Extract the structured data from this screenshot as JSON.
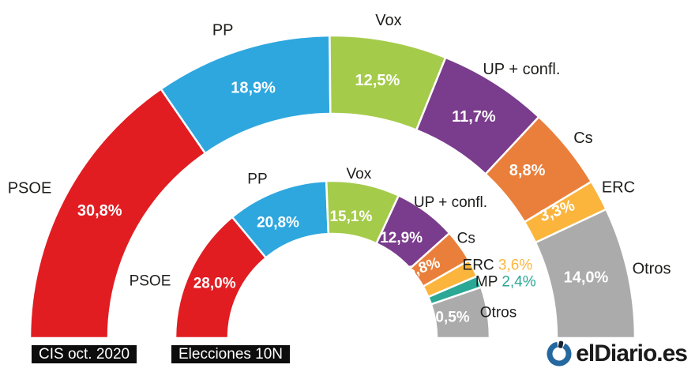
{
  "chart_data": [
    {
      "type": "half-donut",
      "title": "CIS oct. 2020",
      "unit": "%",
      "segments": [
        {
          "party": "PSOE",
          "value": 30.8,
          "label": "30,8%",
          "color": "#e11d22",
          "value_placement": "inside"
        },
        {
          "party": "PP",
          "value": 18.9,
          "label": "18,9%",
          "color": "#2ea7df",
          "value_placement": "inside"
        },
        {
          "party": "Vox",
          "value": 12.5,
          "label": "12,5%",
          "color": "#a5cb4b",
          "value_placement": "inside"
        },
        {
          "party": "UP + confl.",
          "value": 11.7,
          "label": "11,7%",
          "color": "#7a3c8c",
          "value_placement": "inside"
        },
        {
          "party": "Cs",
          "value": 8.8,
          "label": "8,8%",
          "color": "#ea7f3b",
          "value_placement": "inside"
        },
        {
          "party": "ERC",
          "value": 3.3,
          "label": "3,3%",
          "color": "#fbb53c",
          "value_placement": "inside"
        },
        {
          "party": "Otros",
          "value": 14.0,
          "label": "14,0%",
          "color": "#ababab",
          "value_placement": "inside"
        }
      ]
    },
    {
      "type": "half-donut",
      "title": "Elecciones 10N",
      "unit": "%",
      "segments": [
        {
          "party": "PSOE",
          "value": 28.0,
          "label": "28,0%",
          "color": "#e11d22",
          "value_placement": "inside"
        },
        {
          "party": "PP",
          "value": 20.8,
          "label": "20,8%",
          "color": "#2ea7df",
          "value_placement": "inside"
        },
        {
          "party": "Vox",
          "value": 15.1,
          "label": "15,1%",
          "color": "#a5cb4b",
          "value_placement": "inside"
        },
        {
          "party": "UP + confl.",
          "value": 12.9,
          "label": "12,9%",
          "color": "#7a3c8c",
          "value_placement": "inside"
        },
        {
          "party": "Cs",
          "value": 6.8,
          "label": "6,8%",
          "color": "#ea7f3b",
          "value_placement": "inside"
        },
        {
          "party": "ERC",
          "value": 3.6,
          "label": "3,6%",
          "color": "#fbb53c",
          "value_placement": "beside-name"
        },
        {
          "party": "MP",
          "value": 2.4,
          "label": "2,4%",
          "color": "#2ba795",
          "value_placement": "beside-name"
        },
        {
          "party": "Otros",
          "value": 10.5,
          "label": "10,5%",
          "color": "#ababab",
          "value_placement": "inside"
        }
      ]
    }
  ],
  "colors": {
    "name_label": "#1d1d1b",
    "value_label": "#ffffff",
    "title_box_bg": "#0d0d0d",
    "title_box_text": "#ffffff",
    "logo_blue": "#25689f",
    "logo_dark": "#1a1a1a"
  },
  "branding": {
    "logo_text": "elDiario.es"
  }
}
